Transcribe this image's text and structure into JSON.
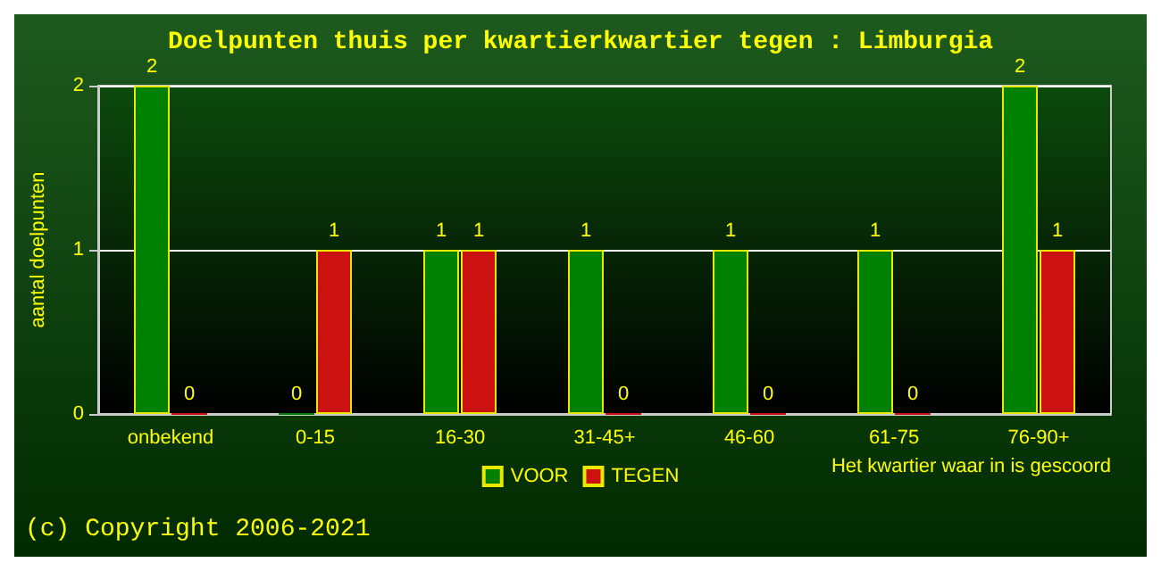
{
  "chart_data": {
    "type": "bar",
    "title": "Doelpunten thuis per kwartierkwartier tegen : Limburgia",
    "ylabel": "aantal doelpunten",
    "xlabel": "Het kwartier waar in is gescoord",
    "categories": [
      "onbekend",
      "0-15",
      "16-30",
      "31-45+",
      "46-60",
      "61-75",
      "76-90+"
    ],
    "series": [
      {
        "name": "VOOR",
        "color": "#008000",
        "values": [
          2,
          0,
          1,
          1,
          1,
          1,
          2
        ]
      },
      {
        "name": "TEGEN",
        "color": "#cc1111",
        "values": [
          0,
          1,
          1,
          0,
          0,
          0,
          1
        ]
      }
    ],
    "ylim": [
      0,
      2
    ],
    "yticks": [
      0,
      1,
      2
    ],
    "grid": "y",
    "legend": "bottom",
    "data_labels": true,
    "annotations": [
      "(c) Copyright 2006-2021"
    ]
  }
}
